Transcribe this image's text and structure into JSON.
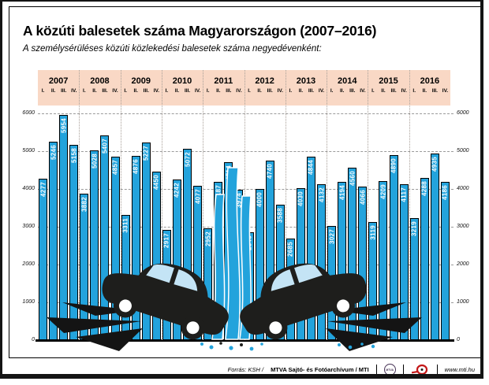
{
  "title": "A közúti balesetek száma Magyarországon (2007–2016)",
  "subtitle": "A személysérüléses közúti közlekedési balesetek száma negyedévenként:",
  "chart_data": {
    "type": "bar",
    "title": "A közúti balesetek száma Magyarországon (2007–2016)",
    "subtitle": "A személysérüléses közúti közlekedési balesetek száma negyedévenként:",
    "quarters": [
      "I.",
      "II.",
      "III.",
      "IV."
    ],
    "groups": [
      {
        "year": "2007",
        "values": [
          4277,
          5246,
          5954,
          5158
        ]
      },
      {
        "year": "2008",
        "values": [
          3882,
          5028,
          5407,
          4857
        ]
      },
      {
        "year": "2009",
        "values": [
          3311,
          4876,
          5227,
          4450
        ]
      },
      {
        "year": "2010",
        "values": [
          2917,
          4242,
          5072,
          4077
        ]
      },
      {
        "year": "2011",
        "values": [
          2952,
          4187,
          4714,
          3974
        ]
      },
      {
        "year": "2012",
        "values": [
          2846,
          4000,
          4740,
          3588
        ]
      },
      {
        "year": "2013",
        "values": [
          2685,
          4030,
          4844,
          4132
        ]
      },
      {
        "year": "2014",
        "values": [
          3027,
          4194,
          4560,
          4066
        ]
      },
      {
        "year": "2015",
        "values": [
          3119,
          4209,
          4890,
          4117
        ]
      },
      {
        "year": "2016",
        "values": [
          3219,
          4288,
          4935,
          4186
        ]
      }
    ],
    "ylim": [
      0,
      6000
    ],
    "yticks": [
      0,
      1000,
      2000,
      3000,
      4000,
      5000,
      6000
    ],
    "grid": true,
    "legend": "none",
    "bar_color": "#23A3DC",
    "band_color": "#F9D8C5",
    "value_label_color": "#ffffff"
  },
  "footer": {
    "source_italic": "Forrás: KSH /",
    "source_bold": "MTVA Sajtó- és Fotóarchívum / MTI",
    "mtva_label": "MTVA",
    "website": "www.mti.hu"
  }
}
